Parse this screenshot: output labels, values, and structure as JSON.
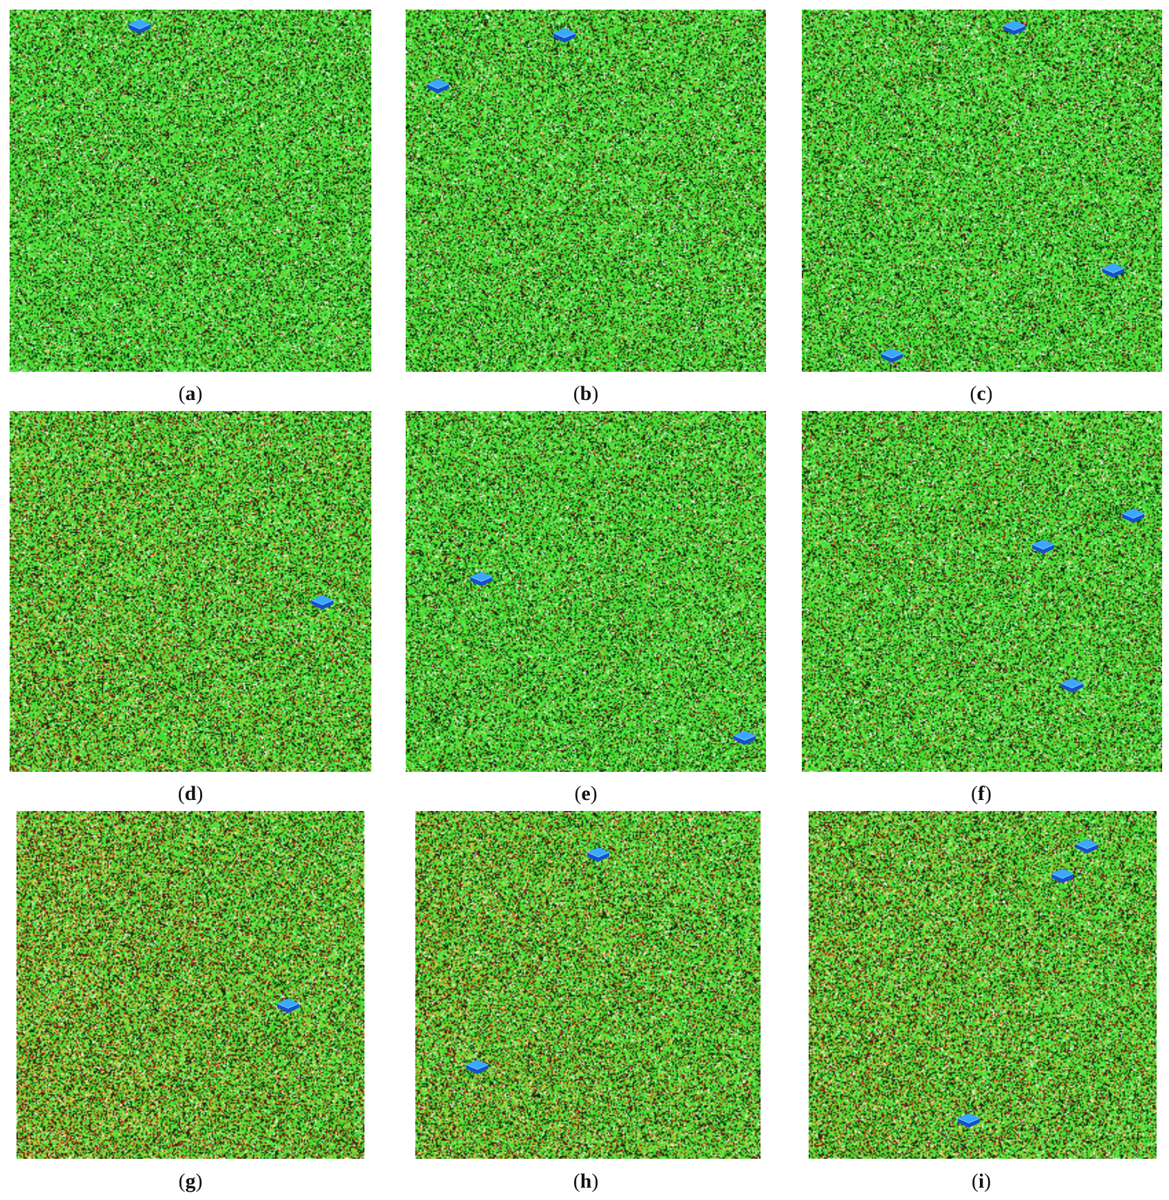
{
  "panels": [
    {
      "label": "a",
      "level": 0.0,
      "markers": [
        [
          0.36,
          0.045
        ]
      ]
    },
    {
      "label": "b",
      "level": 0.02,
      "markers": [
        [
          0.44,
          0.07
        ],
        [
          0.09,
          0.21
        ]
      ]
    },
    {
      "label": "c",
      "level": 0.0,
      "markers": [
        [
          0.59,
          0.05
        ],
        [
          0.865,
          0.72
        ],
        [
          0.25,
          0.955
        ]
      ]
    },
    {
      "label": "d",
      "level": 0.35,
      "markers": [
        [
          0.865,
          0.53
        ]
      ]
    },
    {
      "label": "e",
      "level": 0.05,
      "markers": [
        [
          0.21,
          0.465
        ],
        [
          0.94,
          0.905
        ]
      ]
    },
    {
      "label": "f",
      "level": 0.1,
      "markers": [
        [
          0.92,
          0.29
        ],
        [
          0.67,
          0.375
        ],
        [
          0.75,
          0.76
        ]
      ]
    },
    {
      "label": "g",
      "level": 0.65,
      "markers": [
        [
          0.78,
          0.56
        ]
      ]
    },
    {
      "label": "h",
      "level": 0.5,
      "markers": [
        [
          0.53,
          0.125
        ],
        [
          0.18,
          0.735
        ]
      ]
    },
    {
      "label": "i",
      "level": 0.45,
      "markers": [
        [
          0.8,
          0.1
        ],
        [
          0.73,
          0.185
        ],
        [
          0.46,
          0.89
        ]
      ]
    }
  ],
  "colors": {
    "green": "#39d62a",
    "green_light": "#5de846",
    "dark": "#0f2a0c",
    "red": "#a5261a",
    "yellow": "#d7c53a",
    "white": "#f4f4f4",
    "marker_top": "#3aa8ff",
    "marker_side": "#1650c8"
  }
}
